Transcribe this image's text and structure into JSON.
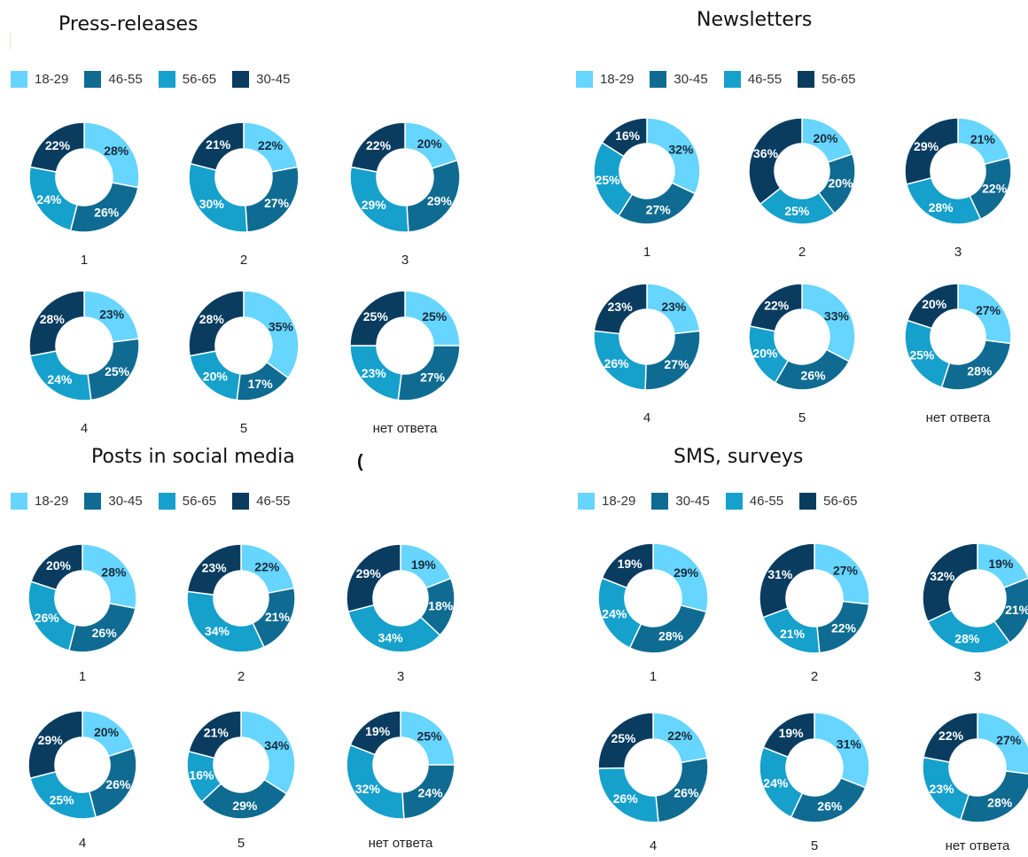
{
  "colors": {
    "c18_29": "#66d5ff",
    "c30_45": "#0f6b91",
    "c46_55": "#16a0cc",
    "c56_65": "#0a3c60",
    "stroke": "#ffffff",
    "label_light": "#ffffff",
    "label_dark": "#1a2a3a"
  },
  "stray_mark": "(",
  "chart_data": [
    {
      "type": "pie",
      "title": "Press-releases",
      "legend": [
        {
          "name": "18-29",
          "color": "#66d5ff"
        },
        {
          "name": "46-55",
          "color": "#0f6b91"
        },
        {
          "name": "56-65",
          "color": "#16a0cc"
        },
        {
          "name": "30-45",
          "color": "#0a3c60"
        }
      ],
      "categories": [
        "1",
        "2",
        "3",
        "4",
        "5",
        "нет ответа"
      ],
      "series": [
        {
          "name": "18-29",
          "values": [
            28,
            22,
            20,
            23,
            35,
            25
          ]
        },
        {
          "name": "46-55",
          "values": [
            26,
            27,
            29,
            25,
            17,
            27
          ]
        },
        {
          "name": "56-65",
          "values": [
            24,
            30,
            29,
            24,
            20,
            23
          ]
        },
        {
          "name": "30-45",
          "values": [
            22,
            21,
            22,
            28,
            28,
            25
          ]
        }
      ]
    },
    {
      "type": "pie",
      "title": "Newsletters",
      "legend": [
        {
          "name": "18-29",
          "color": "#66d5ff"
        },
        {
          "name": "30-45",
          "color": "#0f6b91"
        },
        {
          "name": "46-55",
          "color": "#16a0cc"
        },
        {
          "name": "56-65",
          "color": "#0a3c60"
        }
      ],
      "categories": [
        "1",
        "2",
        "3",
        "4",
        "5",
        "нет ответа"
      ],
      "series": [
        {
          "name": "18-29",
          "values": [
            32,
            20,
            21,
            23,
            33,
            27
          ]
        },
        {
          "name": "30-45",
          "values": [
            27,
            20,
            22,
            27,
            26,
            28
          ]
        },
        {
          "name": "46-55",
          "values": [
            25,
            25,
            28,
            26,
            20,
            25
          ]
        },
        {
          "name": "56-65",
          "values": [
            16,
            36,
            29,
            23,
            22,
            20
          ]
        }
      ]
    },
    {
      "type": "pie",
      "title": "Posts in social media",
      "legend": [
        {
          "name": "18-29",
          "color": "#66d5ff"
        },
        {
          "name": "30-45",
          "color": "#0f6b91"
        },
        {
          "name": "56-65",
          "color": "#16a0cc"
        },
        {
          "name": "46-55",
          "color": "#0a3c60"
        }
      ],
      "categories": [
        "1",
        "2",
        "3",
        "4",
        "5",
        "нет ответа"
      ],
      "series": [
        {
          "name": "18-29",
          "values": [
            28,
            22,
            19,
            20,
            34,
            25
          ]
        },
        {
          "name": "30-45",
          "values": [
            26,
            21,
            18,
            26,
            29,
            24
          ]
        },
        {
          "name": "56-65",
          "values": [
            26,
            34,
            34,
            25,
            16,
            32
          ]
        },
        {
          "name": "46-55",
          "values": [
            20,
            23,
            29,
            29,
            21,
            19
          ]
        }
      ]
    },
    {
      "type": "pie",
      "title": "SMS, surveys",
      "legend": [
        {
          "name": "18-29",
          "color": "#66d5ff"
        },
        {
          "name": "30-45",
          "color": "#0f6b91"
        },
        {
          "name": "46-55",
          "color": "#16a0cc"
        },
        {
          "name": "56-65",
          "color": "#0a3c60"
        }
      ],
      "categories": [
        "1",
        "2",
        "3",
        "4",
        "5",
        "нет ответа"
      ],
      "series": [
        {
          "name": "18-29",
          "values": [
            29,
            27,
            19,
            22,
            31,
            27
          ]
        },
        {
          "name": "30-45",
          "values": [
            28,
            22,
            21,
            26,
            26,
            28
          ]
        },
        {
          "name": "46-55",
          "values": [
            24,
            21,
            28,
            26,
            24,
            23
          ]
        },
        {
          "name": "56-65",
          "values": [
            19,
            31,
            32,
            25,
            19,
            22
          ]
        }
      ]
    }
  ]
}
